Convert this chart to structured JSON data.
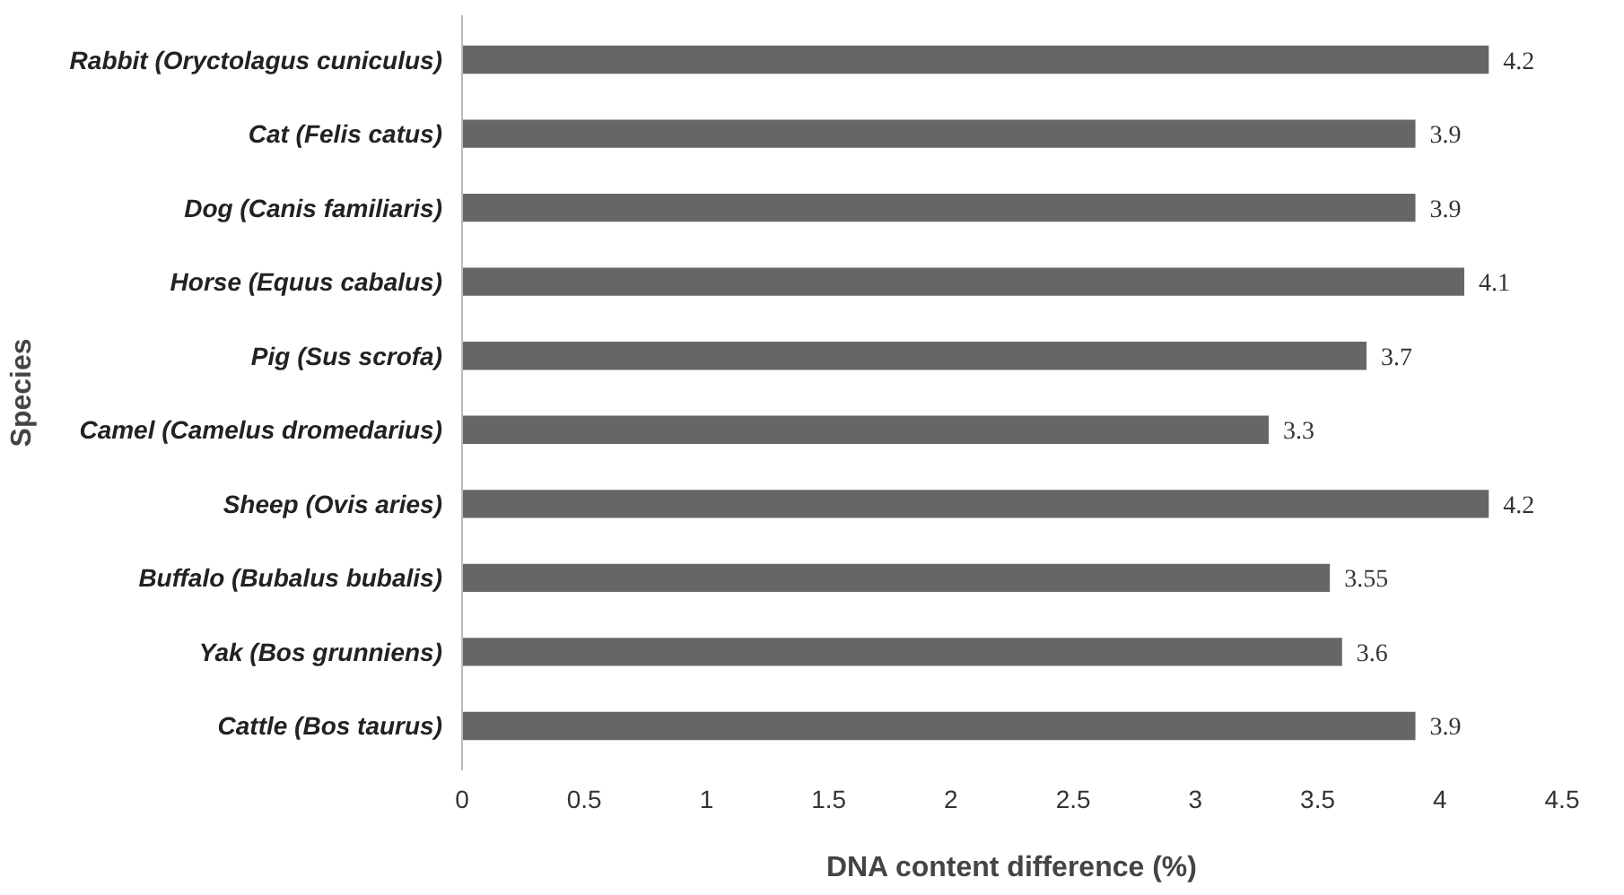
{
  "chart_data": {
    "type": "bar",
    "orientation": "horizontal",
    "xlabel": "DNA content difference (%)",
    "ylabel": "Species",
    "categories": [
      "Rabbit (Oryctolagus cuniculus)",
      "Cat (Felis catus)",
      "Dog (Canis familiaris)",
      "Horse (Equus cabalus)",
      "Pig (Sus scrofa)",
      "Camel (Camelus dromedarius)",
      "Sheep (Ovis aries)",
      "Buffalo (Bubalus bubalis)",
      "Yak (Bos grunniens)",
      "Cattle (Bos taurus)"
    ],
    "values": [
      4.2,
      3.9,
      3.9,
      4.1,
      3.7,
      3.3,
      4.2,
      3.55,
      3.6,
      3.9
    ],
    "color": "#666666",
    "data_labels": true,
    "xlim": [
      0,
      4.5
    ],
    "xticks": [
      0,
      0.5,
      1,
      1.5,
      2,
      2.5,
      3,
      3.5,
      4,
      4.5
    ]
  }
}
